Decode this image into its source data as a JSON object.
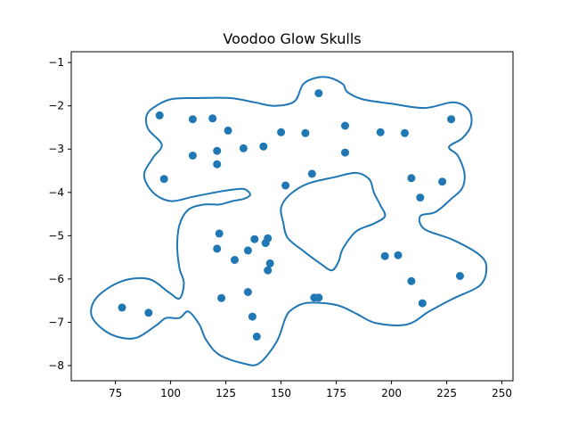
{
  "chart_data": {
    "type": "scatter",
    "title": "Voodoo Glow Skulls",
    "xlabel": "",
    "ylabel": "",
    "xlim": [
      55,
      255
    ],
    "ylim": [
      -8.35,
      -0.75
    ],
    "xticks": [
      75,
      100,
      125,
      150,
      175,
      200,
      225,
      250
    ],
    "yticks": [
      -1,
      -2,
      -3,
      -4,
      -5,
      -6,
      -7,
      -8
    ],
    "grid": false,
    "colors": {
      "points": "#1f77b4",
      "contour": "#1f77b4"
    },
    "points": [
      {
        "x": 95,
        "y": -2.22
      },
      {
        "x": 110,
        "y": -2.31
      },
      {
        "x": 119,
        "y": -2.29
      },
      {
        "x": 126,
        "y": -2.57
      },
      {
        "x": 167,
        "y": -1.71
      },
      {
        "x": 179,
        "y": -2.46
      },
      {
        "x": 227,
        "y": -2.31
      },
      {
        "x": 195,
        "y": -2.61
      },
      {
        "x": 206,
        "y": -2.63
      },
      {
        "x": 150,
        "y": -2.61
      },
      {
        "x": 161,
        "y": -2.63
      },
      {
        "x": 110,
        "y": -3.15
      },
      {
        "x": 121,
        "y": -3.04
      },
      {
        "x": 121,
        "y": -3.35
      },
      {
        "x": 133,
        "y": -2.98
      },
      {
        "x": 142,
        "y": -2.94
      },
      {
        "x": 179,
        "y": -3.08
      },
      {
        "x": 97,
        "y": -3.69
      },
      {
        "x": 152,
        "y": -3.84
      },
      {
        "x": 164,
        "y": -3.57
      },
      {
        "x": 209,
        "y": -3.67
      },
      {
        "x": 223,
        "y": -3.75
      },
      {
        "x": 213,
        "y": -4.12
      },
      {
        "x": 122,
        "y": -4.95
      },
      {
        "x": 138,
        "y": -5.08
      },
      {
        "x": 144,
        "y": -5.06
      },
      {
        "x": 143,
        "y": -5.17
      },
      {
        "x": 121,
        "y": -5.3
      },
      {
        "x": 135,
        "y": -5.34
      },
      {
        "x": 129,
        "y": -5.56
      },
      {
        "x": 145,
        "y": -5.64
      },
      {
        "x": 144,
        "y": -5.8
      },
      {
        "x": 197,
        "y": -5.47
      },
      {
        "x": 203,
        "y": -5.45
      },
      {
        "x": 231,
        "y": -5.93
      },
      {
        "x": 209,
        "y": -6.05
      },
      {
        "x": 135,
        "y": -6.3
      },
      {
        "x": 123,
        "y": -6.44
      },
      {
        "x": 165,
        "y": -6.43
      },
      {
        "x": 167,
        "y": -6.43
      },
      {
        "x": 214,
        "y": -6.56
      },
      {
        "x": 78,
        "y": -6.66
      },
      {
        "x": 90,
        "y": -6.78
      },
      {
        "x": 137,
        "y": -6.87
      },
      {
        "x": 139,
        "y": -7.33
      }
    ],
    "contour_outer": [
      [
        92,
        -2.05
      ],
      [
        100,
        -1.85
      ],
      [
        112,
        -1.82
      ],
      [
        127,
        -1.82
      ],
      [
        138,
        -1.92
      ],
      [
        147,
        -2.0
      ],
      [
        156,
        -1.9
      ],
      [
        160,
        -1.5
      ],
      [
        166,
        -1.35
      ],
      [
        172,
        -1.35
      ],
      [
        178,
        -1.5
      ],
      [
        180,
        -1.68
      ],
      [
        187,
        -1.85
      ],
      [
        200,
        -1.95
      ],
      [
        215,
        -2.05
      ],
      [
        228,
        -1.92
      ],
      [
        235,
        -2.1
      ],
      [
        236,
        -2.45
      ],
      [
        232,
        -2.75
      ],
      [
        226,
        -2.95
      ],
      [
        230,
        -3.15
      ],
      [
        233,
        -3.55
      ],
      [
        232,
        -3.9
      ],
      [
        227,
        -4.15
      ],
      [
        220,
        -4.45
      ],
      [
        213,
        -4.55
      ],
      [
        215,
        -4.85
      ],
      [
        228,
        -5.1
      ],
      [
        240,
        -5.45
      ],
      [
        243,
        -5.75
      ],
      [
        240,
        -6.15
      ],
      [
        228,
        -6.45
      ],
      [
        217,
        -6.75
      ],
      [
        207,
        -7.05
      ],
      [
        193,
        -7.02
      ],
      [
        184,
        -6.8
      ],
      [
        175,
        -6.6
      ],
      [
        162,
        -6.55
      ],
      [
        155,
        -6.7
      ],
      [
        152,
        -6.9
      ],
      [
        148,
        -7.45
      ],
      [
        140,
        -7.95
      ],
      [
        133,
        -7.95
      ],
      [
        122,
        -7.75
      ],
      [
        116,
        -7.4
      ],
      [
        113,
        -7.05
      ],
      [
        108,
        -6.75
      ],
      [
        104,
        -6.9
      ],
      [
        98,
        -6.9
      ],
      [
        94,
        -7.05
      ],
      [
        85,
        -7.35
      ],
      [
        77,
        -7.35
      ],
      [
        69,
        -7.15
      ],
      [
        64,
        -6.8
      ],
      [
        67,
        -6.4
      ],
      [
        78,
        -6.05
      ],
      [
        90,
        -6.0
      ],
      [
        99,
        -6.3
      ],
      [
        104,
        -6.45
      ],
      [
        106,
        -6.1
      ],
      [
        104,
        -5.75
      ],
      [
        103,
        -5.25
      ],
      [
        104,
        -4.75
      ],
      [
        108,
        -4.4
      ],
      [
        115,
        -4.28
      ],
      [
        122,
        -4.28
      ],
      [
        128,
        -4.2
      ],
      [
        133,
        -4.15
      ],
      [
        136,
        -4.05
      ],
      [
        133,
        -3.92
      ],
      [
        126,
        -3.95
      ],
      [
        118,
        -4.02
      ],
      [
        110,
        -4.1
      ],
      [
        100,
        -4.2
      ],
      [
        92,
        -4.0
      ],
      [
        88,
        -3.6
      ],
      [
        92,
        -3.2
      ],
      [
        96,
        -2.9
      ],
      [
        90,
        -2.55
      ],
      [
        89,
        -2.25
      ]
    ],
    "contour_inner": [
      [
        150,
        -4.35
      ],
      [
        154,
        -4.05
      ],
      [
        162,
        -3.8
      ],
      [
        174,
        -3.65
      ],
      [
        184,
        -3.55
      ],
      [
        190,
        -3.7
      ],
      [
        192,
        -4.0
      ],
      [
        195,
        -4.3
      ],
      [
        197,
        -4.55
      ],
      [
        192,
        -4.72
      ],
      [
        184,
        -4.9
      ],
      [
        178,
        -5.3
      ],
      [
        176,
        -5.6
      ],
      [
        173,
        -5.8
      ],
      [
        168,
        -5.65
      ],
      [
        160,
        -5.35
      ],
      [
        153,
        -5.05
      ],
      [
        151,
        -4.7
      ]
    ]
  }
}
